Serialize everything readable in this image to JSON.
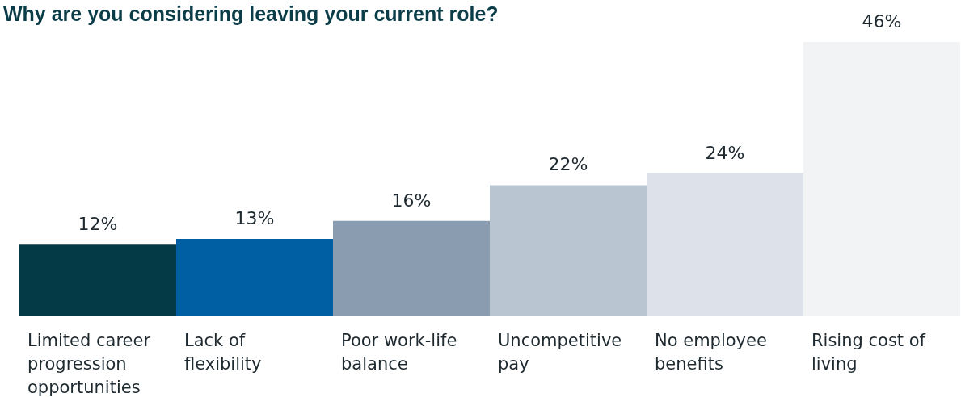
{
  "chart_data": {
    "type": "bar",
    "title": "Why are you considering leaving your current role?",
    "categories": [
      "Limited career progression opportunities",
      "Lack of flexibility",
      "Poor work-life balance",
      "Uncompetitive pay",
      "No employee benefits",
      "Rising cost of living"
    ],
    "values": [
      12,
      13,
      16,
      22,
      24,
      46
    ],
    "value_labels": [
      "12%",
      "13%",
      "16%",
      "22%",
      "24%",
      "46%"
    ],
    "colors": [
      "#043a45",
      "#005ea2",
      "#8a9db0",
      "#b9c6d2",
      "#dde2ea",
      "#f2f3f5"
    ]
  }
}
